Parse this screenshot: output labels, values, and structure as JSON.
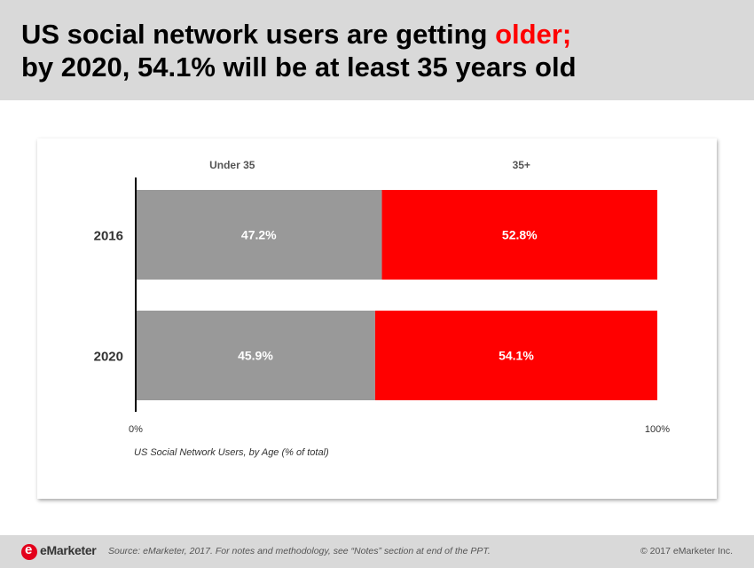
{
  "header": {
    "title_part1": "US social network users are getting ",
    "title_accent": "older;",
    "title_line2": "by 2020, 54.1% will be at least 35 years old",
    "accent_color": "#ff0000",
    "background": "#d9d9d9"
  },
  "chart_data": {
    "type": "bar",
    "orientation": "horizontal",
    "stacked": true,
    "categories": [
      "2016",
      "2020"
    ],
    "series": [
      {
        "name": "Under 35",
        "values": [
          47.2,
          45.9
        ],
        "labels": [
          "47.2%",
          "45.9%"
        ],
        "color": "#999999"
      },
      {
        "name": "35+",
        "values": [
          52.8,
          54.1
        ],
        "labels": [
          "52.8%",
          "54.1%"
        ],
        "color": "#ff0000"
      }
    ],
    "xlim": [
      0,
      100
    ],
    "x_tick_labels": [
      "0%",
      "100%"
    ],
    "caption": "US Social Network Users, by Age (% of total)",
    "legend_placement": "top",
    "grid": false
  },
  "footer": {
    "logo_text": "eMarketer",
    "source": "Source: eMarketer, 2017. For notes and methodology, see “Notes” section at end of the PPT.",
    "copyright": "© 2017 eMarketer Inc."
  }
}
